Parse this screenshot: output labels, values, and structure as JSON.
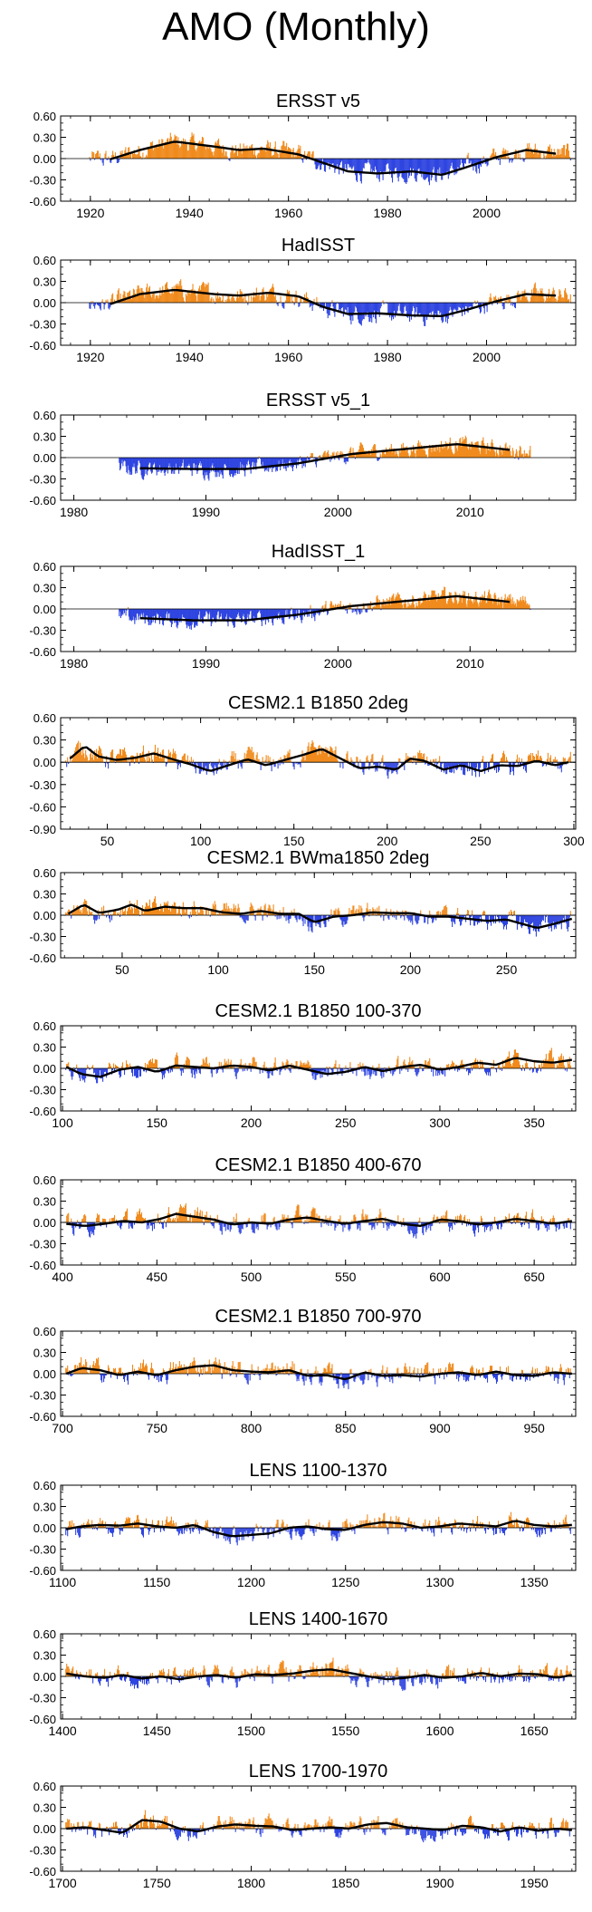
{
  "page_title": "AMO (Monthly)",
  "colors": {
    "positive": "#f08a1c",
    "negative": "#2f45e0",
    "smooth_line": "#000000",
    "axis": "#000000"
  },
  "chart_data": [
    {
      "type": "bar",
      "title": "ERSST v5",
      "xlim": [
        1914,
        2018
      ],
      "ylim": [
        -0.6,
        0.6
      ],
      "yticks": [
        "0.60",
        "0.30",
        "0.00",
        "-0.30",
        "-0.60"
      ],
      "xticks": [
        1920,
        1940,
        1960,
        1980,
        2000
      ],
      "smooth": [
        [
          1924,
          -0.01
        ],
        [
          1930,
          0.12
        ],
        [
          1937,
          0.24
        ],
        [
          1945,
          0.17
        ],
        [
          1950,
          0.12
        ],
        [
          1955,
          0.14
        ],
        [
          1962,
          0.06
        ],
        [
          1967,
          -0.06
        ],
        [
          1972,
          -0.18
        ],
        [
          1978,
          -0.21
        ],
        [
          1985,
          -0.18
        ],
        [
          1991,
          -0.23
        ],
        [
          1996,
          -0.12
        ],
        [
          2002,
          0.02
        ],
        [
          2008,
          0.12
        ],
        [
          2014,
          0.07
        ]
      ],
      "noise": 0.16
    },
    {
      "type": "bar",
      "title": "HadISST",
      "xlim": [
        1914,
        2018
      ],
      "ylim": [
        -0.6,
        0.6
      ],
      "yticks": [
        "0.60",
        "0.30",
        "0.00",
        "-0.30",
        "-0.60"
      ],
      "xticks": [
        1920,
        1940,
        1960,
        1980,
        2000
      ],
      "smooth": [
        [
          1924,
          -0.02
        ],
        [
          1930,
          0.12
        ],
        [
          1937,
          0.18
        ],
        [
          1945,
          0.12
        ],
        [
          1950,
          0.1
        ],
        [
          1956,
          0.14
        ],
        [
          1962,
          0.09
        ],
        [
          1967,
          -0.06
        ],
        [
          1972,
          -0.16
        ],
        [
          1978,
          -0.15
        ],
        [
          1985,
          -0.18
        ],
        [
          1991,
          -0.19
        ],
        [
          1996,
          -0.1
        ],
        [
          2002,
          0.02
        ],
        [
          2008,
          0.12
        ],
        [
          2014,
          0.1
        ]
      ],
      "noise": 0.16
    },
    {
      "type": "bar",
      "title": "ERSST v5_1",
      "xlim": [
        1979,
        2018
      ],
      "ylim": [
        -0.6,
        0.6
      ],
      "yticks": [
        "0.60",
        "0.30",
        "0.00",
        "-0.30",
        "-0.60"
      ],
      "xticks": [
        1980,
        1990,
        2000,
        2010
      ],
      "smooth": [
        [
          1985,
          -0.15
        ],
        [
          1989,
          -0.16
        ],
        [
          1993,
          -0.16
        ],
        [
          1997,
          -0.08
        ],
        [
          2001,
          0.05
        ],
        [
          2005,
          0.12
        ],
        [
          2009,
          0.19
        ],
        [
          2013,
          0.11
        ]
      ],
      "noise": 0.14
    },
    {
      "type": "bar",
      "title": "HadISST_1",
      "xlim": [
        1979,
        2018
      ],
      "ylim": [
        -0.6,
        0.6
      ],
      "yticks": [
        "0.60",
        "0.30",
        "0.00",
        "-0.30",
        "-0.60"
      ],
      "xticks": [
        1980,
        1990,
        2000,
        2010
      ],
      "smooth": [
        [
          1985,
          -0.13
        ],
        [
          1989,
          -0.16
        ],
        [
          1993,
          -0.16
        ],
        [
          1997,
          -0.08
        ],
        [
          2001,
          0.04
        ],
        [
          2005,
          0.11
        ],
        [
          2009,
          0.18
        ],
        [
          2013,
          0.1
        ]
      ],
      "noise": 0.14
    },
    {
      "type": "bar",
      "title": "CESM2.1 B1850 2deg",
      "xlim": [
        25,
        301
      ],
      "ylim": [
        -0.9,
        0.6
      ],
      "yticks": [
        "0.60",
        "0.30",
        "0.00",
        "-0.30",
        "-0.60",
        "-0.90"
      ],
      "xticks": [
        50,
        100,
        150,
        200,
        250,
        300
      ],
      "smooth": [
        [
          30,
          0.05
        ],
        [
          38,
          0.22
        ],
        [
          45,
          0.08
        ],
        [
          55,
          0.03
        ],
        [
          65,
          0.06
        ],
        [
          75,
          0.12
        ],
        [
          85,
          0.04
        ],
        [
          95,
          -0.03
        ],
        [
          105,
          -0.12
        ],
        [
          115,
          -0.04
        ],
        [
          125,
          0.04
        ],
        [
          135,
          -0.04
        ],
        [
          145,
          0.03
        ],
        [
          155,
          0.1
        ],
        [
          165,
          0.18
        ],
        [
          175,
          0.05
        ],
        [
          185,
          -0.08
        ],
        [
          195,
          -0.06
        ],
        [
          205,
          -0.1
        ],
        [
          212,
          0.05
        ],
        [
          220,
          0.02
        ],
        [
          230,
          -0.1
        ],
        [
          240,
          -0.04
        ],
        [
          250,
          -0.12
        ],
        [
          260,
          -0.04
        ],
        [
          270,
          -0.05
        ],
        [
          280,
          0.02
        ],
        [
          290,
          -0.04
        ],
        [
          297,
          0.0
        ]
      ],
      "noise": 0.17
    },
    {
      "type": "bar",
      "title": "CESM2.1 BWma1850 2deg",
      "xlim": [
        18,
        286
      ],
      "ylim": [
        -0.6,
        0.6
      ],
      "yticks": [
        "0.60",
        "0.30",
        "0.00",
        "-0.30",
        "-0.60"
      ],
      "xticks": [
        50,
        100,
        150,
        200,
        250
      ],
      "smooth": [
        [
          22,
          0.02
        ],
        [
          30,
          0.15
        ],
        [
          38,
          0.03
        ],
        [
          48,
          0.08
        ],
        [
          55,
          0.15
        ],
        [
          62,
          0.06
        ],
        [
          72,
          0.12
        ],
        [
          82,
          0.1
        ],
        [
          92,
          0.1
        ],
        [
          102,
          0.04
        ],
        [
          112,
          0.02
        ],
        [
          122,
          0.06
        ],
        [
          132,
          0.02
        ],
        [
          142,
          0.02
        ],
        [
          150,
          -0.1
        ],
        [
          160,
          -0.02
        ],
        [
          170,
          0.0
        ],
        [
          180,
          0.04
        ],
        [
          190,
          0.03
        ],
        [
          200,
          0.03
        ],
        [
          210,
          -0.02
        ],
        [
          220,
          -0.02
        ],
        [
          230,
          -0.05
        ],
        [
          240,
          -0.08
        ],
        [
          250,
          -0.06
        ],
        [
          258,
          -0.12
        ],
        [
          266,
          -0.18
        ],
        [
          275,
          -0.12
        ],
        [
          284,
          -0.05
        ]
      ],
      "noise": 0.17
    },
    {
      "type": "bar",
      "title": "CESM2.1 B1850 100-370",
      "xlim": [
        99,
        372
      ],
      "ylim": [
        -0.6,
        0.6
      ],
      "yticks": [
        "0.60",
        "0.30",
        "0.00",
        "-0.30",
        "-0.60"
      ],
      "xticks": [
        100,
        150,
        200,
        250,
        300,
        350
      ],
      "smooth": [
        [
          102,
          0.02
        ],
        [
          110,
          -0.08
        ],
        [
          120,
          -0.12
        ],
        [
          130,
          -0.02
        ],
        [
          140,
          0.02
        ],
        [
          150,
          -0.05
        ],
        [
          160,
          0.04
        ],
        [
          170,
          0.02
        ],
        [
          180,
          0.0
        ],
        [
          190,
          0.04
        ],
        [
          200,
          0.02
        ],
        [
          210,
          -0.03
        ],
        [
          220,
          0.04
        ],
        [
          230,
          -0.02
        ],
        [
          240,
          -0.08
        ],
        [
          250,
          -0.05
        ],
        [
          260,
          0.02
        ],
        [
          270,
          -0.04
        ],
        [
          280,
          0.02
        ],
        [
          290,
          0.05
        ],
        [
          300,
          -0.02
        ],
        [
          310,
          0.02
        ],
        [
          320,
          0.08
        ],
        [
          330,
          0.05
        ],
        [
          340,
          0.15
        ],
        [
          350,
          0.1
        ],
        [
          360,
          0.08
        ],
        [
          370,
          0.12
        ]
      ],
      "noise": 0.17
    },
    {
      "type": "bar",
      "title": "CESM2.1 B1850 400-670",
      "xlim": [
        399,
        672
      ],
      "ylim": [
        -0.6,
        0.6
      ],
      "yticks": [
        "0.60",
        "0.30",
        "0.00",
        "-0.30",
        "-0.60"
      ],
      "xticks": [
        400,
        450,
        500,
        550,
        600,
        650
      ],
      "smooth": [
        [
          402,
          -0.02
        ],
        [
          412,
          -0.05
        ],
        [
          422,
          -0.02
        ],
        [
          432,
          0.02
        ],
        [
          442,
          0.0
        ],
        [
          452,
          0.05
        ],
        [
          460,
          0.12
        ],
        [
          470,
          0.08
        ],
        [
          480,
          0.04
        ],
        [
          490,
          -0.03
        ],
        [
          500,
          0.0
        ],
        [
          510,
          -0.02
        ],
        [
          520,
          0.04
        ],
        [
          530,
          0.07
        ],
        [
          540,
          0.02
        ],
        [
          550,
          -0.02
        ],
        [
          560,
          0.02
        ],
        [
          570,
          0.05
        ],
        [
          580,
          -0.02
        ],
        [
          590,
          -0.05
        ],
        [
          600,
          0.04
        ],
        [
          610,
          0.02
        ],
        [
          620,
          -0.03
        ],
        [
          630,
          0.0
        ],
        [
          640,
          0.05
        ],
        [
          650,
          0.02
        ],
        [
          660,
          -0.02
        ],
        [
          670,
          0.02
        ]
      ],
      "noise": 0.17
    },
    {
      "type": "bar",
      "title": "CESM2.1 B1850 700-970",
      "xlim": [
        699,
        972
      ],
      "ylim": [
        -0.6,
        0.6
      ],
      "yticks": [
        "0.60",
        "0.30",
        "0.00",
        "-0.30",
        "-0.60"
      ],
      "xticks": [
        700,
        750,
        800,
        850,
        900,
        950
      ],
      "smooth": [
        [
          702,
          0.0
        ],
        [
          710,
          0.08
        ],
        [
          720,
          0.05
        ],
        [
          730,
          -0.02
        ],
        [
          740,
          0.03
        ],
        [
          750,
          -0.02
        ],
        [
          760,
          0.05
        ],
        [
          770,
          0.1
        ],
        [
          780,
          0.12
        ],
        [
          790,
          0.05
        ],
        [
          800,
          0.03
        ],
        [
          810,
          0.02
        ],
        [
          820,
          0.05
        ],
        [
          830,
          -0.03
        ],
        [
          840,
          -0.02
        ],
        [
          850,
          -0.08
        ],
        [
          860,
          0.02
        ],
        [
          870,
          -0.03
        ],
        [
          880,
          -0.02
        ],
        [
          890,
          -0.04
        ],
        [
          900,
          0.0
        ],
        [
          910,
          0.02
        ],
        [
          920,
          -0.02
        ],
        [
          930,
          0.03
        ],
        [
          940,
          -0.02
        ],
        [
          950,
          -0.03
        ],
        [
          960,
          0.02
        ],
        [
          970,
          0.0
        ]
      ],
      "noise": 0.18
    },
    {
      "type": "bar",
      "title": "LENS 1100-1370",
      "xlim": [
        1099,
        1372
      ],
      "ylim": [
        -0.6,
        0.6
      ],
      "yticks": [
        "0.60",
        "0.30",
        "0.00",
        "-0.30",
        "-0.60"
      ],
      "xticks": [
        1100,
        1150,
        1200,
        1250,
        1300,
        1350
      ],
      "smooth": [
        [
          1102,
          -0.02
        ],
        [
          1110,
          0.02
        ],
        [
          1120,
          0.04
        ],
        [
          1130,
          0.03
        ],
        [
          1140,
          0.06
        ],
        [
          1150,
          0.02
        ],
        [
          1160,
          0.0
        ],
        [
          1170,
          0.04
        ],
        [
          1180,
          -0.06
        ],
        [
          1190,
          -0.12
        ],
        [
          1200,
          -0.1
        ],
        [
          1210,
          -0.08
        ],
        [
          1220,
          0.0
        ],
        [
          1230,
          0.02
        ],
        [
          1240,
          -0.02
        ],
        [
          1250,
          -0.03
        ],
        [
          1260,
          0.04
        ],
        [
          1270,
          0.08
        ],
        [
          1280,
          0.06
        ],
        [
          1290,
          0.0
        ],
        [
          1300,
          0.02
        ],
        [
          1310,
          0.06
        ],
        [
          1320,
          0.04
        ],
        [
          1330,
          0.02
        ],
        [
          1340,
          0.1
        ],
        [
          1350,
          0.04
        ],
        [
          1360,
          0.02
        ],
        [
          1370,
          0.04
        ]
      ],
      "noise": 0.16
    },
    {
      "type": "bar",
      "title": "LENS 1400-1670",
      "xlim": [
        1399,
        1672
      ],
      "ylim": [
        -0.6,
        0.6
      ],
      "yticks": [
        "0.60",
        "0.30",
        "0.00",
        "-0.30",
        "-0.60"
      ],
      "xticks": [
        1400,
        1450,
        1500,
        1550,
        1600,
        1650
      ],
      "smooth": [
        [
          1402,
          0.04
        ],
        [
          1412,
          0.0
        ],
        [
          1422,
          -0.02
        ],
        [
          1432,
          0.02
        ],
        [
          1442,
          -0.03
        ],
        [
          1452,
          0.0
        ],
        [
          1462,
          -0.04
        ],
        [
          1472,
          0.0
        ],
        [
          1482,
          0.02
        ],
        [
          1492,
          -0.02
        ],
        [
          1502,
          0.03
        ],
        [
          1512,
          0.02
        ],
        [
          1522,
          0.04
        ],
        [
          1532,
          0.08
        ],
        [
          1542,
          0.1
        ],
        [
          1552,
          0.05
        ],
        [
          1562,
          0.0
        ],
        [
          1572,
          -0.04
        ],
        [
          1582,
          -0.02
        ],
        [
          1592,
          0.02
        ],
        [
          1602,
          -0.02
        ],
        [
          1612,
          0.0
        ],
        [
          1622,
          0.05
        ],
        [
          1632,
          0.0
        ],
        [
          1642,
          0.04
        ],
        [
          1652,
          0.03
        ],
        [
          1662,
          -0.02
        ],
        [
          1670,
          0.02
        ]
      ],
      "noise": 0.16
    },
    {
      "type": "bar",
      "title": "LENS 1700-1970",
      "xlim": [
        1699,
        1972
      ],
      "ylim": [
        -0.6,
        0.6
      ],
      "yticks": [
        "0.60",
        "0.30",
        "0.00",
        "-0.30",
        "-0.60"
      ],
      "xticks": [
        1700,
        1750,
        1800,
        1850,
        1900,
        1950
      ],
      "smooth": [
        [
          1702,
          0.0
        ],
        [
          1712,
          0.02
        ],
        [
          1722,
          -0.02
        ],
        [
          1732,
          -0.06
        ],
        [
          1742,
          0.12
        ],
        [
          1752,
          0.1
        ],
        [
          1762,
          0.0
        ],
        [
          1772,
          -0.04
        ],
        [
          1782,
          0.03
        ],
        [
          1792,
          0.06
        ],
        [
          1802,
          0.04
        ],
        [
          1812,
          0.03
        ],
        [
          1822,
          -0.02
        ],
        [
          1832,
          0.0
        ],
        [
          1842,
          0.02
        ],
        [
          1852,
          0.0
        ],
        [
          1862,
          0.06
        ],
        [
          1872,
          0.08
        ],
        [
          1882,
          0.02
        ],
        [
          1892,
          0.0
        ],
        [
          1902,
          -0.02
        ],
        [
          1912,
          0.04
        ],
        [
          1922,
          0.02
        ],
        [
          1932,
          -0.04
        ],
        [
          1942,
          0.02
        ],
        [
          1952,
          -0.03
        ],
        [
          1962,
          0.0
        ],
        [
          1970,
          -0.02
        ]
      ],
      "noise": 0.16
    }
  ]
}
